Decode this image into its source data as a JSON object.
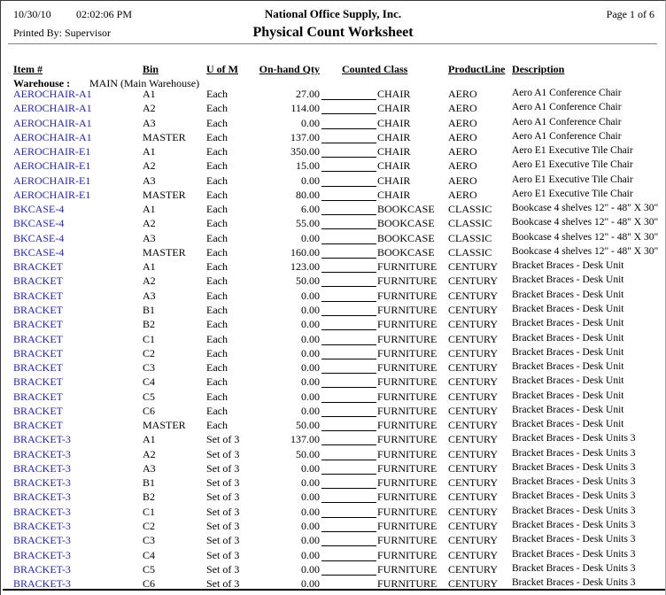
{
  "header": {
    "date": "10/30/10",
    "time": "02:02:06 PM",
    "company": "National Office Supply, Inc.",
    "page_label": "Page 1 of 6",
    "printed_by": "Printed By: Supervisor",
    "title": "Physical Count Worksheet"
  },
  "colors": {
    "item_link": "#2222cc",
    "separator_grey": "#808080",
    "footer_line": "#000000"
  },
  "table": {
    "headers": [
      "Item #",
      "Bin",
      "U of M",
      "On-hand Qty",
      "Counted Class",
      "ProductLine",
      "Description"
    ],
    "warehouse_label": "Warehouse :",
    "warehouse_value": "MAIN (Main Warehouse)",
    "rows": [
      [
        "AEROCHAIR-A1",
        "A1",
        "Each",
        "27.00",
        "CHAIR",
        "AERO",
        "Aero A1 Conference Chair"
      ],
      [
        "AEROCHAIR-A1",
        "A2",
        "Each",
        "114.00",
        "CHAIR",
        "AERO",
        "Aero A1 Conference Chair"
      ],
      [
        "AEROCHAIR-A1",
        "A3",
        "Each",
        "0.00",
        "CHAIR",
        "AERO",
        "Aero A1 Conference Chair"
      ],
      [
        "AEROCHAIR-A1",
        "MASTER",
        "Each",
        "137.00",
        "CHAIR",
        "AERO",
        "Aero A1 Conference Chair"
      ],
      [
        "AEROCHAIR-E1",
        "A1",
        "Each",
        "350.00",
        "CHAIR",
        "AERO",
        "Aero E1 Executive Tile Chair"
      ],
      [
        "AEROCHAIR-E1",
        "A2",
        "Each",
        "15.00",
        "CHAIR",
        "AERO",
        "Aero E1 Executive Tile Chair"
      ],
      [
        "AEROCHAIR-E1",
        "A3",
        "Each",
        "0.00",
        "CHAIR",
        "AERO",
        "Aero E1 Executive Tile Chair"
      ],
      [
        "AEROCHAIR-E1",
        "MASTER",
        "Each",
        "80.00",
        "CHAIR",
        "AERO",
        "Aero E1 Executive Tile Chair"
      ],
      [
        "BKCASE-4",
        "A1",
        "Each",
        "6.00",
        "BOOKCASE",
        "CLASSIC",
        "Bookcase 4 shelves 12\" - 48\" X 30\""
      ],
      [
        "BKCASE-4",
        "A2",
        "Each",
        "55.00",
        "BOOKCASE",
        "CLASSIC",
        "Bookcase 4 shelves 12\" - 48\" X 30\""
      ],
      [
        "BKCASE-4",
        "A3",
        "Each",
        "0.00",
        "BOOKCASE",
        "CLASSIC",
        "Bookcase 4 shelves 12\" - 48\" X 30\""
      ],
      [
        "BKCASE-4",
        "MASTER",
        "Each",
        "160.00",
        "BOOKCASE",
        "CLASSIC",
        "Bookcase 4 shelves 12\" - 48\" X 30\""
      ],
      [
        "BRACKET",
        "A1",
        "Each",
        "123.00",
        "FURNITURE",
        "CENTURY",
        "Bracket Braces - Desk Unit"
      ],
      [
        "BRACKET",
        "A2",
        "Each",
        "50.00",
        "FURNITURE",
        "CENTURY",
        "Bracket Braces - Desk Unit"
      ],
      [
        "BRACKET",
        "A3",
        "Each",
        "0.00",
        "FURNITURE",
        "CENTURY",
        "Bracket Braces - Desk Unit"
      ],
      [
        "BRACKET",
        "B1",
        "Each",
        "0.00",
        "FURNITURE",
        "CENTURY",
        "Bracket Braces - Desk Unit"
      ],
      [
        "BRACKET",
        "B2",
        "Each",
        "0.00",
        "FURNITURE",
        "CENTURY",
        "Bracket Braces - Desk Unit"
      ],
      [
        "BRACKET",
        "C1",
        "Each",
        "0.00",
        "FURNITURE",
        "CENTURY",
        "Bracket Braces - Desk Unit"
      ],
      [
        "BRACKET",
        "C2",
        "Each",
        "0.00",
        "FURNITURE",
        "CENTURY",
        "Bracket Braces - Desk Unit"
      ],
      [
        "BRACKET",
        "C3",
        "Each",
        "0.00",
        "FURNITURE",
        "CENTURY",
        "Bracket Braces - Desk Unit"
      ],
      [
        "BRACKET",
        "C4",
        "Each",
        "0.00",
        "FURNITURE",
        "CENTURY",
        "Bracket Braces - Desk Unit"
      ],
      [
        "BRACKET",
        "C5",
        "Each",
        "0.00",
        "FURNITURE",
        "CENTURY",
        "Bracket Braces - Desk Unit"
      ],
      [
        "BRACKET",
        "C6",
        "Each",
        "0.00",
        "FURNITURE",
        "CENTURY",
        "Bracket Braces - Desk Unit"
      ],
      [
        "BRACKET",
        "MASTER",
        "Each",
        "50.00",
        "FURNITURE",
        "CENTURY",
        "Bracket Braces - Desk Unit"
      ],
      [
        "BRACKET-3",
        "A1",
        "Set of 3",
        "137.00",
        "FURNITURE",
        "CENTURY",
        "Bracket Braces - Desk Units 3"
      ],
      [
        "BRACKET-3",
        "A2",
        "Set of 3",
        "50.00",
        "FURNITURE",
        "CENTURY",
        "Bracket Braces - Desk Units 3"
      ],
      [
        "BRACKET-3",
        "A3",
        "Set of 3",
        "0.00",
        "FURNITURE",
        "CENTURY",
        "Bracket Braces - Desk Units 3"
      ],
      [
        "BRACKET-3",
        "B1",
        "Set of 3",
        "0.00",
        "FURNITURE",
        "CENTURY",
        "Bracket Braces - Desk Units 3"
      ],
      [
        "BRACKET-3",
        "B2",
        "Set of 3",
        "0.00",
        "FURNITURE",
        "CENTURY",
        "Bracket Braces - Desk Units 3"
      ],
      [
        "BRACKET-3",
        "C1",
        "Set of 3",
        "0.00",
        "FURNITURE",
        "CENTURY",
        "Bracket Braces - Desk Units 3"
      ],
      [
        "BRACKET-3",
        "C2",
        "Set of 3",
        "0.00",
        "FURNITURE",
        "CENTURY",
        "Bracket Braces - Desk Units 3"
      ],
      [
        "BRACKET-3",
        "C3",
        "Set of 3",
        "0.00",
        "FURNITURE",
        "CENTURY",
        "Bracket Braces - Desk Units 3"
      ],
      [
        "BRACKET-3",
        "C4",
        "Set of 3",
        "0.00",
        "FURNITURE",
        "CENTURY",
        "Bracket Braces - Desk Units 3"
      ],
      [
        "BRACKET-3",
        "C5",
        "Set of 3",
        "0.00",
        "FURNITURE",
        "CENTURY",
        "Bracket Braces - Desk Units 3"
      ],
      [
        "BRACKET-3",
        "C6",
        "Set of 3",
        "0.00",
        "FURNITURE",
        "CENTURY",
        "Bracket Braces - Desk Units 3"
      ]
    ]
  }
}
